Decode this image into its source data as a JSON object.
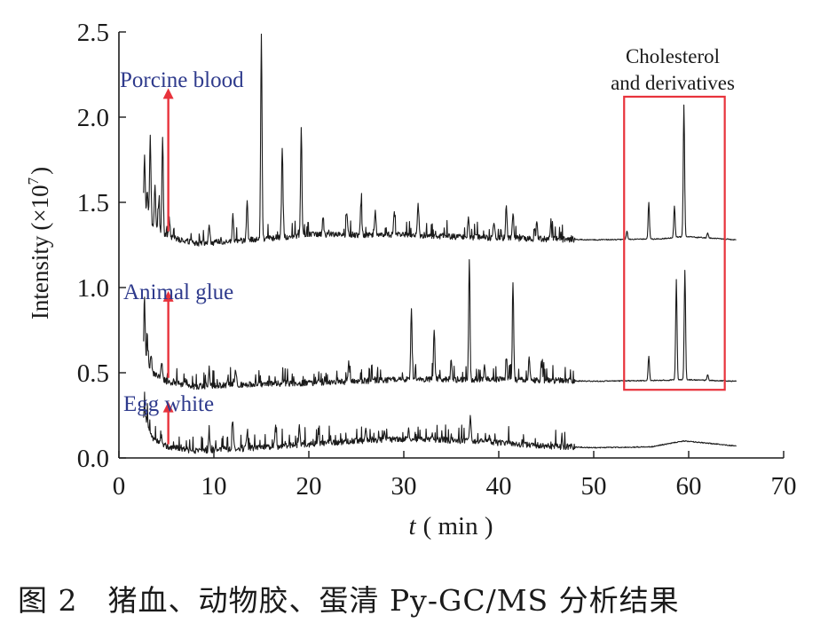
{
  "chart_data": {
    "type": "line",
    "ylabel_main": "Intensity",
    "ylabel_unit": "(×10",
    "ylabel_exp": "7",
    "ylabel_close": ")",
    "xlabel_var": "t",
    "xlabel_unit": "( min )",
    "xlim": [
      0,
      70
    ],
    "ylim": [
      0,
      2.5
    ],
    "x_ticks": [
      0,
      10,
      20,
      30,
      40,
      50,
      60,
      70
    ],
    "x_tick_labels": [
      "0",
      "10",
      "20",
      "30",
      "40",
      "50",
      "60",
      "70"
    ],
    "y_ticks": [
      0.0,
      0.5,
      1.0,
      1.5,
      2.0,
      2.5
    ],
    "y_tick_labels": [
      "0.0",
      "0.5",
      "1.0",
      "1.5",
      "2.0",
      "2.5"
    ],
    "grid": false,
    "series": [
      {
        "name": "Porcine blood",
        "color": "#1a1a1a",
        "baseline": [
          [
            2.6,
            1.45
          ],
          [
            3.5,
            1.36
          ],
          [
            5,
            1.3
          ],
          [
            8,
            1.26
          ],
          [
            12,
            1.27
          ],
          [
            20,
            1.31
          ],
          [
            30,
            1.31
          ],
          [
            40,
            1.29
          ],
          [
            50,
            1.28
          ],
          [
            57,
            1.285
          ],
          [
            59.5,
            1.3
          ],
          [
            65,
            1.28
          ]
        ],
        "peaks": [
          [
            2.7,
            1.78
          ],
          [
            3.0,
            1.57
          ],
          [
            3.3,
            1.9
          ],
          [
            3.8,
            1.6
          ],
          [
            4.2,
            1.5
          ],
          [
            4.6,
            1.88
          ],
          [
            5.3,
            1.42
          ],
          [
            9.5,
            1.38
          ],
          [
            12.0,
            1.43
          ],
          [
            13.5,
            1.52
          ],
          [
            15.0,
            2.5
          ],
          [
            17.2,
            1.83
          ],
          [
            19.2,
            1.93
          ],
          [
            21.5,
            1.42
          ],
          [
            24.0,
            1.45
          ],
          [
            25.5,
            1.5
          ],
          [
            27.0,
            1.45
          ],
          [
            29.0,
            1.45
          ],
          [
            31.5,
            1.5
          ],
          [
            36.8,
            1.42
          ],
          [
            39.5,
            1.38
          ],
          [
            40.8,
            1.49
          ],
          [
            41.5,
            1.45
          ],
          [
            44.0,
            1.39
          ],
          [
            45.5,
            1.36
          ],
          [
            53.5,
            1.33
          ],
          [
            55.8,
            1.5
          ],
          [
            58.5,
            1.48
          ],
          [
            59.5,
            2.07
          ],
          [
            62.0,
            1.32
          ]
        ]
      },
      {
        "name": "Animal glue",
        "color": "#1a1a1a",
        "baseline": [
          [
            2.6,
            0.6
          ],
          [
            3.5,
            0.5
          ],
          [
            5,
            0.45
          ],
          [
            8,
            0.42
          ],
          [
            12,
            0.43
          ],
          [
            20,
            0.44
          ],
          [
            30,
            0.46
          ],
          [
            40,
            0.46
          ],
          [
            50,
            0.45
          ],
          [
            57,
            0.455
          ],
          [
            59.5,
            0.46
          ],
          [
            65,
            0.45
          ]
        ],
        "peaks": [
          [
            2.7,
            0.87
          ],
          [
            3.0,
            0.67
          ],
          [
            3.4,
            0.6
          ],
          [
            4.5,
            0.57
          ],
          [
            9.5,
            0.5
          ],
          [
            12.3,
            0.52
          ],
          [
            24.2,
            0.57
          ],
          [
            30.8,
            0.88
          ],
          [
            33.2,
            0.75
          ],
          [
            35.0,
            0.58
          ],
          [
            36.9,
            1.18
          ],
          [
            38.5,
            0.54
          ],
          [
            40.8,
            0.59
          ],
          [
            41.5,
            1.03
          ],
          [
            43.2,
            0.6
          ],
          [
            44.5,
            0.56
          ],
          [
            55.8,
            0.6
          ],
          [
            58.7,
            1.05
          ],
          [
            59.6,
            1.1
          ],
          [
            62.0,
            0.49
          ]
        ]
      },
      {
        "name": "Egg white",
        "color": "#1a1a1a",
        "baseline": [
          [
            2.6,
            0.22
          ],
          [
            3.5,
            0.12
          ],
          [
            5,
            0.07
          ],
          [
            8,
            0.04
          ],
          [
            15,
            0.06
          ],
          [
            25,
            0.1
          ],
          [
            30,
            0.11
          ],
          [
            37,
            0.1
          ],
          [
            45,
            0.07
          ],
          [
            50,
            0.06
          ],
          [
            56,
            0.065
          ],
          [
            59.5,
            0.1
          ],
          [
            65,
            0.07
          ]
        ],
        "peaks": [
          [
            2.7,
            0.3
          ],
          [
            3.0,
            0.24
          ],
          [
            4.5,
            0.12
          ],
          [
            9.5,
            0.14
          ],
          [
            12.0,
            0.22
          ],
          [
            13.5,
            0.15
          ],
          [
            16.5,
            0.18
          ],
          [
            19.0,
            0.2
          ],
          [
            21.0,
            0.16
          ],
          [
            26.0,
            0.18
          ],
          [
            28.0,
            0.16
          ],
          [
            30.5,
            0.18
          ],
          [
            33.0,
            0.15
          ],
          [
            37.0,
            0.25
          ],
          [
            39.0,
            0.13
          ],
          [
            41.0,
            0.11
          ]
        ]
      }
    ],
    "series_labels": [
      "Porcine blood",
      "Animal glue",
      "Egg white"
    ],
    "label_color": "#2e3a8c",
    "arrow_color": "#e8333c",
    "arrow_x": 5.2,
    "arrows": [
      {
        "y_from": 1.33,
        "y_to": 2.17
      },
      {
        "y_from": 0.47,
        "y_to": 0.98
      },
      {
        "y_from": 0.08,
        "y_to": 0.33
      }
    ],
    "highlight_box": {
      "x_range": [
        53.2,
        63.8
      ],
      "y_range": [
        0.4,
        2.12
      ],
      "color": "#e8333c"
    },
    "annotation_line1": "Cholesterol",
    "annotation_line2": "and derivatives"
  },
  "caption": "图 2　猪血、动物胶、蛋清 Py-GC/MS 分析结果"
}
